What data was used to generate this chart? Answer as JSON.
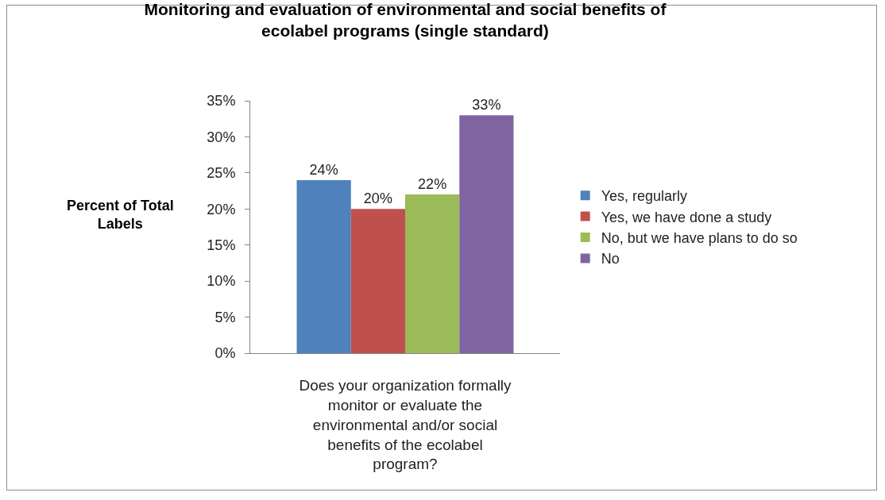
{
  "chart_data": {
    "type": "bar",
    "title": "Monitoring and evaluation of environmental and social benefits of ecolabel programs (single standard)",
    "xlabel": "Does your organization formally monitor or evaluate the environmental and/or social benefits of the ecolabel program?",
    "ylabel": "Percent of Total Labels",
    "categories": [
      null
    ],
    "series": [
      {
        "name": "Yes, regularly",
        "color": "#4f81bd",
        "values": [
          24
        ],
        "value_labels": [
          "24%"
        ]
      },
      {
        "name": "Yes, we have done a study",
        "color": "#c0504d",
        "values": [
          20
        ],
        "value_labels": [
          "20%"
        ]
      },
      {
        "name": "No, but we have plans to do so",
        "color": "#9bbb59",
        "values": [
          22
        ],
        "value_labels": [
          "22%"
        ]
      },
      {
        "name": "No",
        "color": "#8064a2",
        "values": [
          33
        ],
        "value_labels": [
          "33%"
        ]
      }
    ],
    "ylim": [
      0,
      35
    ],
    "yticks": [
      {
        "value": 0,
        "label": "0%"
      },
      {
        "value": 5,
        "label": "5%"
      },
      {
        "value": 10,
        "label": "10%"
      },
      {
        "value": 15,
        "label": "15%"
      },
      {
        "value": 20,
        "label": "20%"
      },
      {
        "value": 25,
        "label": "25%"
      },
      {
        "value": 30,
        "label": "30%"
      },
      {
        "value": 35,
        "label": "35%"
      }
    ],
    "grid": false,
    "legend": "right"
  }
}
